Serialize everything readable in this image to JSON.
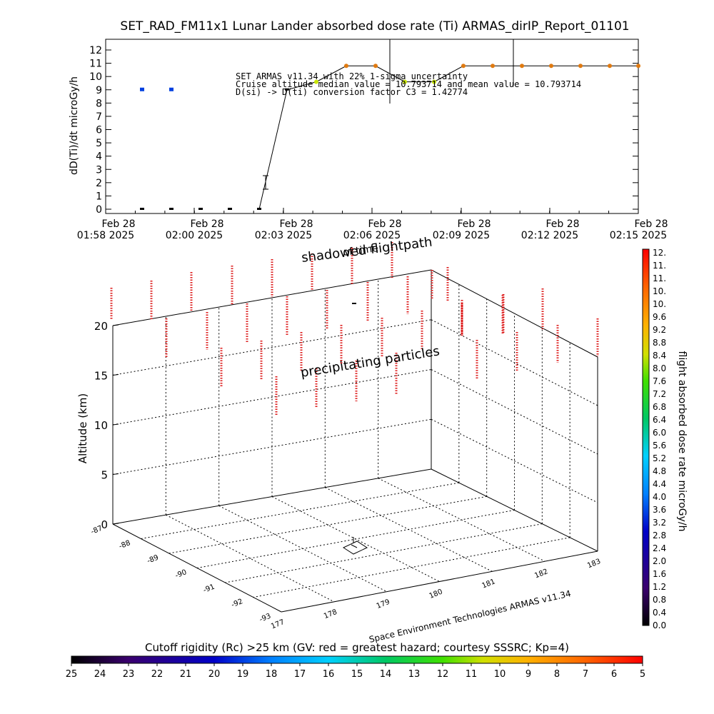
{
  "title": "SET_RAD_FM11x1  Lunar Lander absorbed dose rate (Ti) ARMAS_dirIP_Report_01101",
  "chart_data": [
    {
      "type": "line",
      "ylabel": "dD(Ti)/dt microGy/h",
      "ylim": [
        0,
        12
      ],
      "yticks": [
        "0",
        "1",
        "2",
        "3",
        "4",
        "5",
        "6",
        "7",
        "8",
        "9",
        "10",
        "11",
        "12"
      ],
      "xticks": [
        {
          "date": "Feb 28",
          "time": "01:58 2025"
        },
        {
          "date": "Feb 28",
          "time": "02:00 2025"
        },
        {
          "date": "Feb 28",
          "time": "02:03 2025"
        },
        {
          "date": "Feb 28",
          "time": "02:06 2025"
        },
        {
          "date": "Feb 28",
          "time": "02:09 2025"
        },
        {
          "date": "Feb 28",
          "time": "02:12 2025"
        },
        {
          "date": "Feb 28",
          "time": "02:15 2025"
        }
      ],
      "x_minutes_from_first_tick": [
        1,
        2,
        2,
        3,
        4,
        5,
        6,
        7,
        8,
        9,
        10,
        11,
        12,
        13,
        14,
        15,
        16,
        17
      ],
      "series": [
        {
          "values": [
            0,
            9,
            0,
            9,
            0,
            0,
            0,
            1.9,
            9,
            9.6,
            10.8,
            10.8,
            9.6,
            9.6,
            10.8,
            10.8,
            10.8,
            10.8
          ]
        }
      ],
      "annotations": [
        "SET ARMAS v11.34 with 22% 1-sigma uncertainty",
        "Cruise altitude median value = 10.793714 and mean value = 10.793714",
        "D(si) -> D(ti) conversion factor C3 = 1.42774"
      ]
    },
    {
      "type": "scatter",
      "zlabel": "Altitude (km)",
      "zticks": [
        "0",
        "5",
        "10",
        "15",
        "20"
      ],
      "lat_ticks": [
        "-87",
        "-88",
        "-89",
        "-90",
        "-91",
        "-92",
        "-93"
      ],
      "lon_ticks": [
        "177",
        "178",
        "179",
        "180",
        "181",
        "182",
        "183"
      ],
      "annotations": [
        "shadowed flightpath",
        "of time",
        "precipitating particles"
      ],
      "credit": "Space Environment Technologies ARMAS v11.34"
    }
  ],
  "colorbar_right": {
    "label": "flight absorbed dose rate microGy/h",
    "ticks": [
      "12.",
      "11.",
      "11.",
      "10.",
      "10.",
      "9.6",
      "9.2",
      "8.8",
      "8.4",
      "8.0",
      "7.6",
      "7.2",
      "6.8",
      "6.4",
      "6.0",
      "5.6",
      "5.2",
      "4.8",
      "4.4",
      "4.0",
      "3.6",
      "3.2",
      "2.8",
      "2.4",
      "2.0",
      "1.6",
      "1.2",
      "0.8",
      "0.4",
      "0.0"
    ]
  },
  "colorbar_bottom": {
    "label": "Cutoff rigidity (Rc) >25 km (GV: red = greatest hazard; courtesy SSSRC; Kp=4)",
    "ticks": [
      "25",
      "24",
      "23",
      "22",
      "21",
      "20",
      "19",
      "18",
      "17",
      "16",
      "15",
      "14",
      "13",
      "12",
      "11",
      "10",
      "9",
      "8",
      "7",
      "6",
      "5"
    ]
  },
  "colors": {
    "rainbow": [
      "#000000",
      "#3a006e",
      "#0000c8",
      "#0064ff",
      "#00c8ff",
      "#00c864",
      "#32e600",
      "#c8e600",
      "#ffc800",
      "#ff6400",
      "#ff0000"
    ]
  }
}
